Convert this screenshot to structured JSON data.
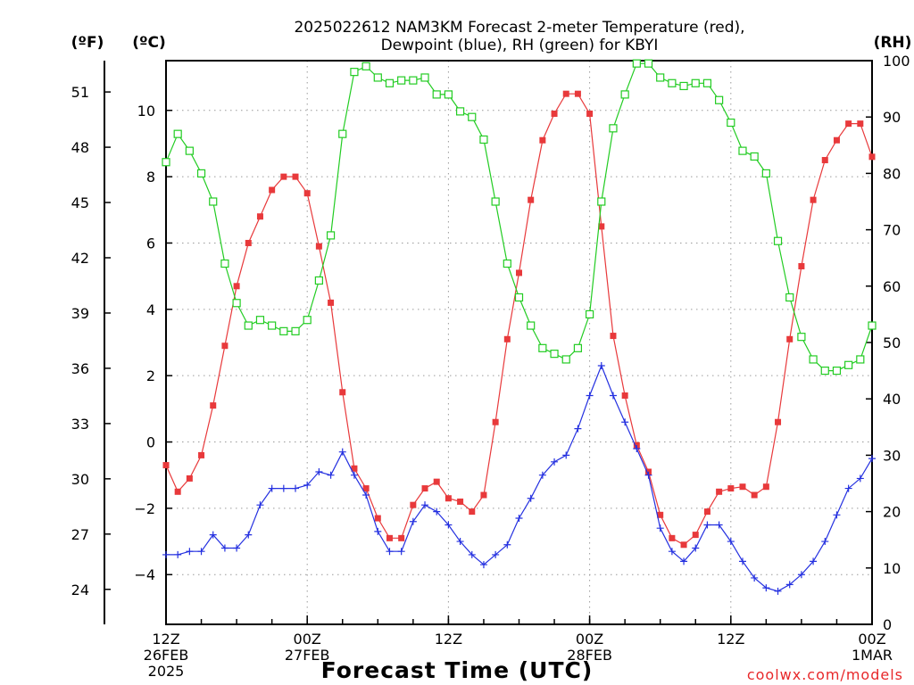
{
  "chart_data": {
    "type": "line",
    "title_lines": [
      "2025022612 NAM3KM Forecast 2-meter Temperature (red),",
      "Dewpoint (blue), RH (green) for KBYI"
    ],
    "xlabel": "Forecast Time (UTC)",
    "credit": "coolwx.com/models",
    "units": {
      "fahrenheit": "(ºF)",
      "celsius": "(ºC)",
      "rh": "(RH)"
    },
    "x_hours_from_start": {
      "range": [
        0,
        60
      ],
      "step": 1
    },
    "x_ticks": [
      {
        "hour": 0,
        "label": [
          "12Z",
          "26FEB",
          "2025"
        ]
      },
      {
        "hour": 12,
        "label": [
          "00Z",
          "27FEB"
        ]
      },
      {
        "hour": 24,
        "label": [
          "12Z"
        ]
      },
      {
        "hour": 36,
        "label": [
          "00Z",
          "28FEB"
        ]
      },
      {
        "hour": 48,
        "label": [
          "12Z"
        ]
      },
      {
        "hour": 60,
        "label": [
          "00Z",
          "1MAR"
        ]
      }
    ],
    "y_celsius": {
      "range": [
        -5.5,
        11.5
      ],
      "ticks": [
        10,
        8,
        6,
        4,
        2,
        0,
        -2,
        -4
      ]
    },
    "y_fahrenheit": {
      "ticks": [
        51,
        48,
        45,
        42,
        39,
        36,
        33,
        30,
        27,
        24
      ]
    },
    "y_rh": {
      "range": [
        0,
        100
      ],
      "ticks": [
        100,
        90,
        80,
        70,
        60,
        50,
        40,
        30,
        20,
        10,
        0
      ]
    },
    "grid": true,
    "series": [
      {
        "name": "Temperature",
        "color": "#e8393b",
        "marker": "filled-square",
        "axis": "celsius",
        "values": [
          -0.7,
          -1.5,
          -1.1,
          -0.4,
          1.1,
          2.9,
          4.7,
          6.0,
          6.8,
          7.6,
          8.0,
          8.0,
          7.5,
          5.9,
          4.2,
          1.5,
          -0.8,
          -1.4,
          -2.3,
          -2.9,
          -2.9,
          -1.9,
          -1.4,
          -1.2,
          -1.7,
          -1.8,
          -2.1,
          -1.6,
          0.6,
          3.1,
          5.1,
          7.3,
          9.1,
          9.9,
          10.5,
          10.5,
          9.9,
          6.5,
          3.2,
          1.4,
          -0.1,
          -0.9,
          -2.2,
          -2.9,
          -3.1,
          -2.8,
          -2.1,
          -1.5,
          -1.4,
          -1.35,
          -1.6,
          -1.35,
          0.6,
          3.1,
          5.3,
          7.3,
          8.5,
          9.1,
          9.6,
          9.6,
          8.6
        ]
      },
      {
        "name": "Dewpoint",
        "color": "#2430e0",
        "marker": "plus",
        "axis": "celsius",
        "values": [
          -3.4,
          -3.4,
          -3.3,
          -3.3,
          -2.8,
          -3.2,
          -3.2,
          -2.8,
          -1.9,
          -1.4,
          -1.4,
          -1.4,
          -1.3,
          -0.9,
          -1.0,
          -0.3,
          -1.0,
          -1.6,
          -2.7,
          -3.3,
          -3.3,
          -2.4,
          -1.9,
          -2.1,
          -2.5,
          -3.0,
          -3.4,
          -3.7,
          -3.4,
          -3.1,
          -2.3,
          -1.7,
          -1.0,
          -0.6,
          -0.4,
          0.4,
          1.4,
          2.3,
          1.4,
          0.6,
          -0.2,
          -1.0,
          -2.6,
          -3.3,
          -3.6,
          -3.2,
          -2.5,
          -2.5,
          -3.0,
          -3.6,
          -4.1,
          -4.4,
          -4.5,
          -4.3,
          -4.0,
          -3.6,
          -3.0,
          -2.2,
          -1.4,
          -1.1,
          -0.5
        ]
      },
      {
        "name": "RH",
        "color": "#22cc22",
        "marker": "open-square",
        "axis": "rh",
        "values": [
          82,
          87,
          84,
          80,
          75,
          64,
          57,
          53,
          54,
          53,
          52,
          52,
          54,
          61,
          69,
          87,
          98,
          99,
          97,
          96,
          96.5,
          96.5,
          97,
          94,
          94,
          91,
          90,
          86,
          75,
          64,
          58,
          53,
          49,
          48,
          47,
          49,
          55,
          75,
          88,
          94,
          99.5,
          99.5,
          97,
          96,
          95.5,
          96,
          96,
          93,
          89,
          84,
          83,
          80,
          68,
          58,
          51,
          47,
          45,
          45,
          46,
          47,
          53
        ]
      }
    ]
  }
}
